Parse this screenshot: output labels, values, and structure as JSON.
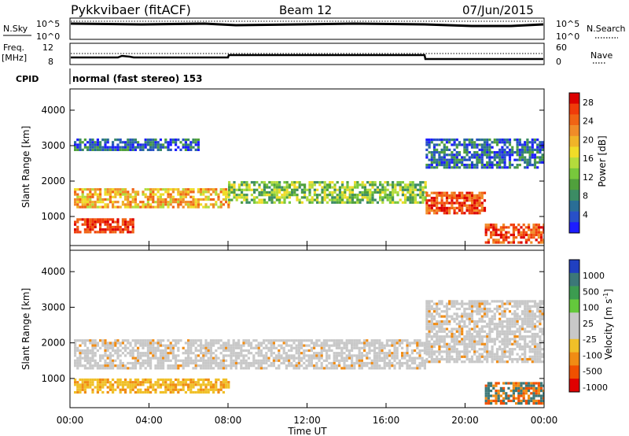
{
  "header": {
    "radar": "Pykkvibaer (fitACF)",
    "beam": "Beam 12",
    "date": "07/Jun/2015"
  },
  "top_panels": {
    "nsky_label": "N.Sky",
    "nsearch_label": "N.Search",
    "nsky_ticks": [
      "10^5",
      "10^0"
    ],
    "nsearch_ticks": [
      "10^5",
      "10^0"
    ],
    "freq_label_1": "Freq.",
    "freq_label_2": "[MHz]",
    "freq_ticks": [
      "12",
      "8"
    ],
    "nave_label": "Nave",
    "nave_ticks": [
      "60",
      "0"
    ],
    "cpid_label": "CPID",
    "cpid_text": "normal (fast stereo) 153"
  },
  "chart_data": [
    {
      "type": "heatmap",
      "title": "",
      "xlabel": "Time UT",
      "ylabel": "Slant Range [km]",
      "xlim": [
        "00:00",
        "24:00"
      ],
      "ylim": [
        180,
        4600
      ],
      "x_ticks": [
        "00:00",
        "04:00",
        "08:00",
        "12:00",
        "16:00",
        "20:00",
        "00:00"
      ],
      "y_ticks": [
        1000,
        2000,
        3000,
        4000
      ],
      "colorbar": {
        "label": "Power [dB]",
        "ticks": [
          4,
          8,
          12,
          16,
          20,
          24,
          28
        ],
        "colors": [
          "#1d1dff",
          "#2850c8",
          "#2a6e96",
          "#3c8c64",
          "#50a03c",
          "#78c83c",
          "#b4dc3c",
          "#f0dc28",
          "#f0b428",
          "#f08c28",
          "#f06414",
          "#f03c0a",
          "#dc0000"
        ]
      },
      "echo_regions": [
        {
          "t": [
            0.2,
            8.0
          ],
          "range_km": [
            1300,
            1800
          ],
          "value": "14-24 dB"
        },
        {
          "t": [
            0.2,
            3.2
          ],
          "range_km": [
            550,
            950
          ],
          "value": "26-30 dB"
        },
        {
          "t": [
            8.0,
            18.0
          ],
          "range_km": [
            1400,
            2000
          ],
          "value": "10-18 dB"
        },
        {
          "t": [
            18.0,
            21.0
          ],
          "range_km": [
            1100,
            1700
          ],
          "value": "20-28 dB"
        },
        {
          "t": [
            0.2,
            6.5
          ],
          "range_km": [
            2900,
            3200
          ],
          "value": "4-10 dB"
        },
        {
          "t": [
            18.0,
            24.0
          ],
          "range_km": [
            2400,
            3200
          ],
          "value": "4-10 dB"
        },
        {
          "t": [
            21.0,
            24.0
          ],
          "range_km": [
            300,
            800
          ],
          "value": "20-28 dB"
        }
      ]
    },
    {
      "type": "heatmap",
      "title": "",
      "xlabel": "Time UT",
      "ylabel": "Slant Range [km]",
      "xlim": [
        "00:00",
        "24:00"
      ],
      "ylim": [
        180,
        4600
      ],
      "x_ticks": [
        "00:00",
        "04:00",
        "08:00",
        "12:00",
        "16:00",
        "20:00",
        "00:00"
      ],
      "y_ticks": [
        1000,
        2000,
        3000,
        4000
      ],
      "colorbar": {
        "label": "Velocity [m s^-1]",
        "ticks": [
          1000,
          500,
          100,
          25,
          -25,
          -100,
          -500,
          -1000
        ],
        "colors": [
          "#2040c0",
          "#3c7878",
          "#3c9c50",
          "#64c83c",
          "#c8c8c8",
          "#c8c8c8",
          "#f0c028",
          "#f08c14",
          "#f05000",
          "#e00000"
        ]
      },
      "echo_regions": [
        {
          "t": [
            0.2,
            8.0
          ],
          "range_km": [
            600,
            1000
          ],
          "value": "-100 to -500 m/s"
        },
        {
          "t": [
            0.2,
            18.0
          ],
          "range_km": [
            1300,
            2100
          ],
          "value": "-25 to 25 m/s"
        },
        {
          "t": [
            18.0,
            24.0
          ],
          "range_km": [
            1500,
            3200
          ],
          "value": "-25 to 25 m/s"
        },
        {
          "t": [
            21.0,
            24.0
          ],
          "range_km": [
            300,
            900
          ],
          "value": "100 to -500 m/s"
        }
      ]
    }
  ]
}
